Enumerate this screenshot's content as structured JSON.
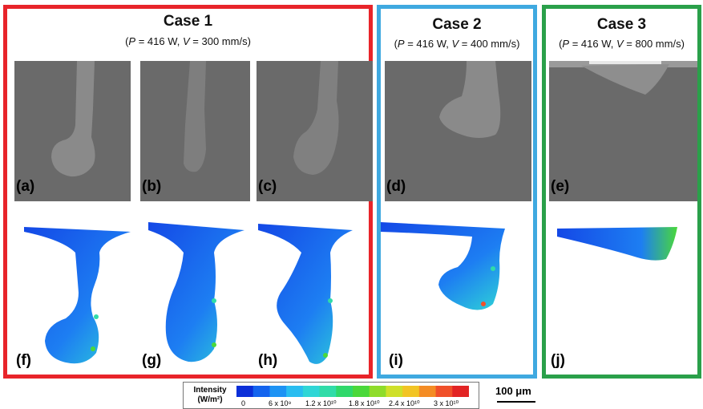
{
  "cases": [
    {
      "title": "Case 1",
      "power": "416 W",
      "velocity": "300 mm/s",
      "border_color": "#e8242a"
    },
    {
      "title": "Case 2",
      "power": "416 W",
      "velocity": "400 mm/s",
      "border_color": "#3fa9e0"
    },
    {
      "title": "Case 3",
      "power": "416 W",
      "velocity": "800 mm/s",
      "border_color": "#2aa04a"
    }
  ],
  "param_labels": {
    "p_symbol": "P",
    "v_symbol": "V"
  },
  "panels": {
    "xray": [
      "(a)",
      "(b)",
      "(c)",
      "(d)",
      "(e)"
    ],
    "sim": [
      "(f)",
      "(g)",
      "(h)",
      "(i)",
      "(j)"
    ]
  },
  "legend": {
    "title_line1": "Intensity",
    "title_line2": "(W/m²)",
    "ticks": [
      "0",
      "6 x 10⁹",
      "1.2 x 10¹⁰",
      "1.8 x 10¹⁰",
      "2.4 x 10¹⁰",
      "3 x 10¹⁰"
    ],
    "colors": [
      "#0b2fd8",
      "#1464ee",
      "#1d93f4",
      "#29bdf0",
      "#2fd6d6",
      "#30dca8",
      "#2fd86a",
      "#4ad83a",
      "#8fdc2a",
      "#cfe02a",
      "#f2c424",
      "#f48c24",
      "#f0502a",
      "#e22424"
    ]
  },
  "scalebar": {
    "label": "100 μm"
  }
}
